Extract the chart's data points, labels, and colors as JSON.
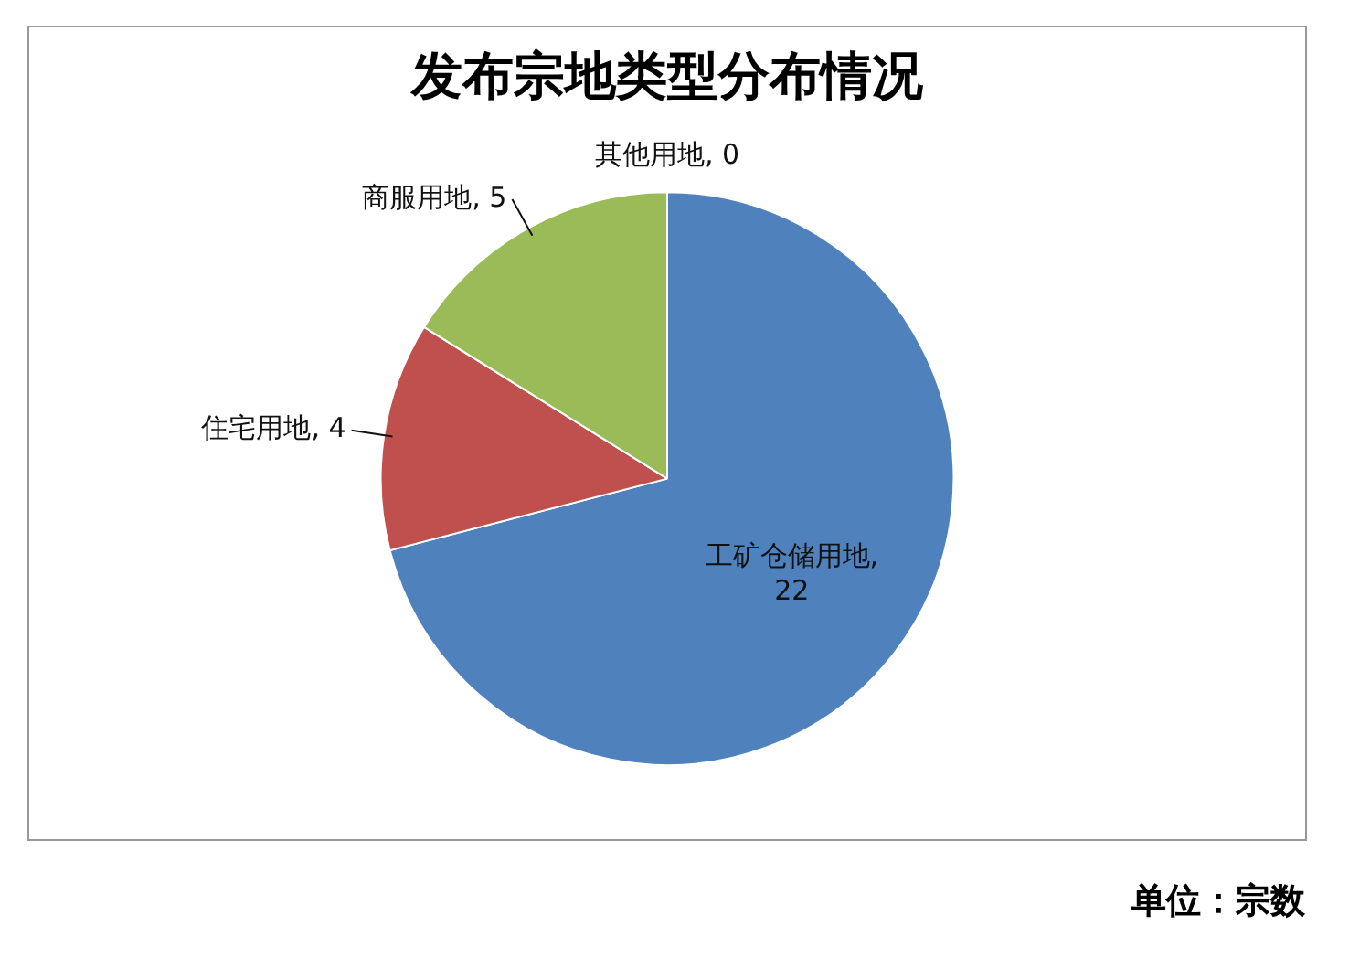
{
  "chart_data": {
    "type": "pie",
    "title": "发布宗地类型分布情况",
    "categories": [
      "工矿仓储用地",
      "住宅用地",
      "商服用地",
      "其他用地"
    ],
    "values": [
      22,
      4,
      5,
      0
    ],
    "value_labels": [
      ",\n22",
      ", 4",
      ", 5",
      ", 0"
    ],
    "colors": [
      "#4f81bd",
      "#c0504d",
      "#9bbb59",
      "#8064a2"
    ],
    "legend": false,
    "annotations": [
      "单位：宗数"
    ]
  }
}
